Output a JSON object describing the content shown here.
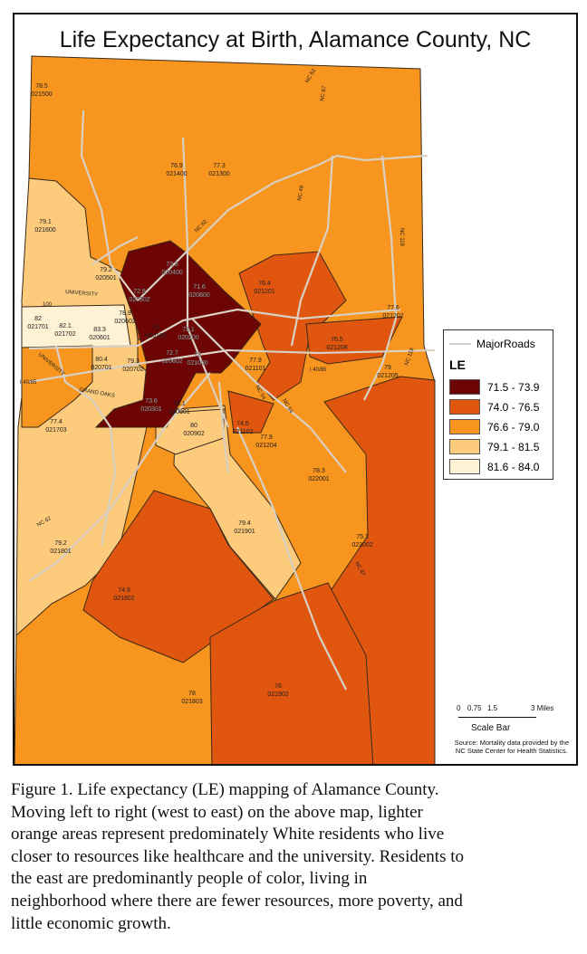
{
  "title": "Life Expectancy at Birth, Alamance County, NC",
  "colors": {
    "class1": "#6E0505",
    "class2": "#E0560F",
    "class3": "#F8951E",
    "class4": "#FCCB7C",
    "class5": "#FEF1D4",
    "roads": "#D9D0C4",
    "boundary": "#3a2a1a"
  },
  "legend": {
    "roads_label": "MajorRoads",
    "title": "LE",
    "classes": [
      {
        "label": "71.5 - 73.9",
        "color": "#6E0505"
      },
      {
        "label": "74.0 - 76.5",
        "color": "#E0560F"
      },
      {
        "label": "76.6 - 79.0",
        "color": "#F8951E"
      },
      {
        "label": "79.1 - 81.5",
        "color": "#FCCB7C"
      },
      {
        "label": "81.6 - 84.0",
        "color": "#FEF1D4"
      }
    ]
  },
  "tracts": [
    {
      "le": "78.5",
      "id": "021500"
    },
    {
      "le": "76.9",
      "id": "021400"
    },
    {
      "le": "77.3",
      "id": "021300"
    },
    {
      "le": "79.1",
      "id": "021600"
    },
    {
      "le": "79.2",
      "id": "020501"
    },
    {
      "le": "73.3",
      "id": "020400"
    },
    {
      "le": "72.8",
      "id": "020302"
    },
    {
      "le": "82",
      "id": "021701"
    },
    {
      "le": "82.1",
      "id": "021702"
    },
    {
      "le": "83.3",
      "id": "020601"
    },
    {
      "le": "78.9",
      "id": "020602"
    },
    {
      "le": "75",
      "id": "020100"
    },
    {
      "le": "71.6",
      "id": "020800"
    },
    {
      "le": "72.1",
      "id": "020200"
    },
    {
      "le": "72.7",
      "id": "020602"
    },
    {
      "le": "73",
      "id": "021000"
    },
    {
      "le": "76.4",
      "id": "021201"
    },
    {
      "le": "77.6",
      "id": "021207"
    },
    {
      "le": "76.5",
      "id": "021208"
    },
    {
      "le": "79",
      "id": "021205"
    },
    {
      "le": "77.9",
      "id": "021101"
    },
    {
      "le": "77.9",
      "id": "021204"
    },
    {
      "le": "80.4",
      "id": "020701"
    },
    {
      "le": "79.3",
      "id": "020702"
    },
    {
      "le": "77.4",
      "id": "021703"
    },
    {
      "le": "73.6",
      "id": "020301"
    },
    {
      "le": "78.1",
      "id": "020901"
    },
    {
      "le": "80",
      "id": "020902"
    },
    {
      "le": "74.5",
      "id": "021102"
    },
    {
      "le": "79.2",
      "id": "021801"
    },
    {
      "le": "78.3",
      "id": "022001"
    },
    {
      "le": "79.4",
      "id": "021901"
    },
    {
      "le": "74.9",
      "id": "021802"
    },
    {
      "le": "75.1",
      "id": "022002"
    },
    {
      "le": "76",
      "id": "021902"
    },
    {
      "le": "78",
      "id": "021803"
    }
  ],
  "road_labels": [
    "NC 62",
    "NC 87",
    "NC 49",
    "NC 119",
    "NC 62",
    "NC 54",
    "UNIVERSITY",
    "UNIVERSITY",
    "GRAND OAKS",
    "I 40/85",
    "I 40/85",
    "100",
    "NC 87",
    "NC 62",
    "NC 54",
    "NC 119"
  ],
  "scale_bar": {
    "ticks": [
      "0",
      "0.75",
      "1.5",
      "3 Miles"
    ],
    "title": "Scale Bar"
  },
  "source": [
    "Source: Mortality data provided by the",
    "NC State Center for Health Statistics."
  ],
  "caption": [
    "Figure 1. Life expectancy (LE) mapping of Alamance County.",
    "Moving left to right (west to east) on the above map, lighter",
    "orange areas represent predominately White residents who live",
    "closer to resources like healthcare and the university. Residents to",
    "the east are predominantly people of color, living in",
    "neighborhood where there are fewer resources, more poverty, and",
    "little economic growth."
  ]
}
